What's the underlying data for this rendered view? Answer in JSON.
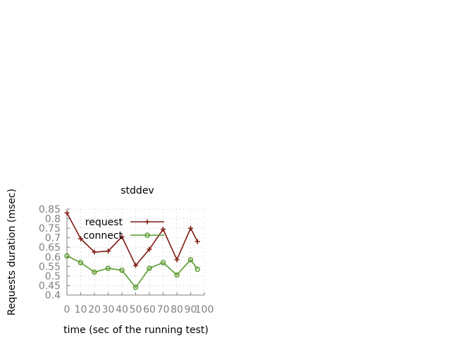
{
  "chart_data": {
    "type": "line",
    "title": "stddev",
    "xlabel": "time (sec of the running test)",
    "ylabel": "Requests duration (msec)",
    "xlim": [
      0,
      100
    ],
    "ylim": [
      0.4,
      0.85
    ],
    "xticks": [
      "0",
      "10",
      "20",
      "30",
      "40",
      "50",
      "60",
      "70",
      "80",
      "90",
      "100"
    ],
    "yticks": [
      "0.85",
      "0.8",
      "0.75",
      "0.7",
      "0.65",
      "0.6",
      "0.55",
      "0.5",
      "0.45",
      "0.4"
    ],
    "grid": true,
    "legend_position": "top-left",
    "series": [
      {
        "name": "request",
        "color": "#7f1a12",
        "marker": "plus",
        "x": [
          0,
          10,
          20,
          30,
          40,
          50,
          60,
          70,
          80,
          90,
          95
        ],
        "y": [
          0.83,
          0.695,
          0.625,
          0.63,
          0.705,
          0.555,
          0.64,
          0.745,
          0.585,
          0.75,
          0.68
        ]
      },
      {
        "name": "connect",
        "color": "#5a9a2e",
        "marker": "circle",
        "x": [
          0,
          10,
          20,
          30,
          40,
          50,
          60,
          70,
          80,
          90,
          95
        ],
        "y": [
          0.605,
          0.57,
          0.52,
          0.54,
          0.53,
          0.44,
          0.54,
          0.57,
          0.505,
          0.585,
          0.535
        ]
      }
    ]
  }
}
